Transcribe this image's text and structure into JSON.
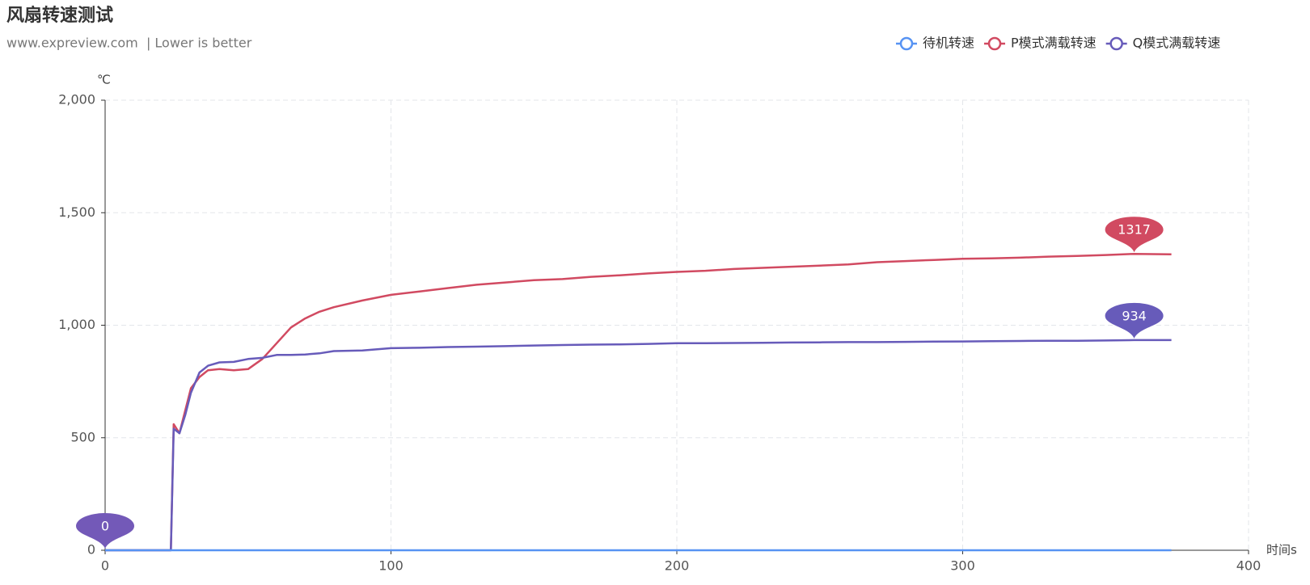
{
  "chart_data": {
    "type": "line",
    "title": "风扇转速测试",
    "subtitle": "www.expreview.com  | Lower is better",
    "y_label": "℃",
    "x_label": "时间s",
    "x": [
      0,
      23,
      24,
      26,
      28,
      30,
      33,
      36,
      40,
      45,
      50,
      55,
      60,
      65,
      70,
      75,
      80,
      90,
      100,
      110,
      120,
      130,
      140,
      150,
      160,
      170,
      180,
      190,
      200,
      210,
      220,
      230,
      240,
      250,
      260,
      270,
      280,
      290,
      300,
      310,
      320,
      330,
      340,
      350,
      360,
      373
    ],
    "series": [
      {
        "name": "待机转速",
        "color": "#5793f3",
        "values": [
          0,
          0,
          0,
          0,
          0,
          0,
          0,
          0,
          0,
          0,
          0,
          0,
          0,
          0,
          0,
          0,
          0,
          0,
          0,
          0,
          0,
          0,
          0,
          0,
          0,
          0,
          0,
          0,
          0,
          0,
          0,
          0,
          0,
          0,
          0,
          0,
          0,
          0,
          0,
          0,
          0,
          0,
          0,
          0,
          0,
          0
        ]
      },
      {
        "name": "P模式满载转速",
        "color": "#d14a61",
        "values": [
          0,
          0,
          560,
          520,
          620,
          720,
          770,
          800,
          805,
          800,
          805,
          850,
          920,
          990,
          1030,
          1060,
          1080,
          1110,
          1135,
          1150,
          1165,
          1180,
          1190,
          1200,
          1205,
          1215,
          1222,
          1230,
          1237,
          1242,
          1250,
          1255,
          1260,
          1265,
          1270,
          1280,
          1285,
          1290,
          1295,
          1297,
          1300,
          1305,
          1308,
          1312,
          1317,
          1315
        ]
      },
      {
        "name": "Q模式满载转速",
        "color": "#675bba",
        "values": [
          0,
          0,
          540,
          520,
          600,
          700,
          790,
          820,
          835,
          837,
          850,
          855,
          868,
          868,
          870,
          875,
          885,
          888,
          898,
          900,
          903,
          905,
          907,
          910,
          912,
          914,
          915,
          917,
          920,
          920,
          921,
          922,
          923,
          924,
          925,
          925,
          926,
          927,
          928,
          929,
          930,
          931,
          931,
          932,
          934,
          934
        ]
      }
    ],
    "markers": [
      {
        "x": 0,
        "value": 0,
        "color": "#7359b8"
      },
      {
        "x": 360,
        "value": 1317,
        "color": "#d14a61"
      },
      {
        "x": 360,
        "value": 934,
        "color": "#675bba"
      }
    ],
    "xlim": [
      0,
      400
    ],
    "xticks": [
      0,
      100,
      200,
      300,
      400
    ],
    "ylim": [
      0,
      2000
    ],
    "yticks": [
      0,
      500,
      {
        "value": 1000,
        "label": "1,000"
      },
      {
        "value": 1500,
        "label": "1,500"
      },
      {
        "value": 2000,
        "label": "2,000"
      }
    ],
    "grid": true
  }
}
